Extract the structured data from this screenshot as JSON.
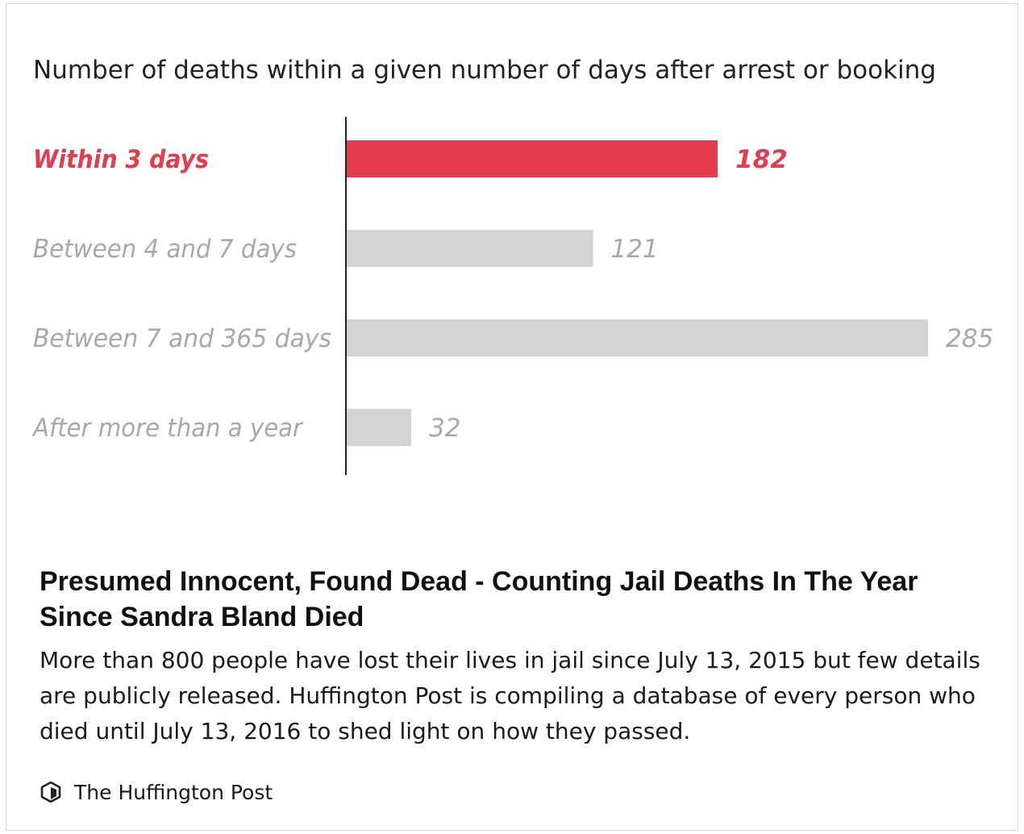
{
  "chart_data": {
    "type": "bar",
    "orientation": "horizontal",
    "title": "Number of deaths within a given number of days after arrest or booking",
    "categories": [
      "Within 3 days",
      "Between 4 and 7 days",
      "Between 7 and 365 days",
      "After more than a year"
    ],
    "values": [
      182,
      121,
      285,
      32
    ],
    "highlight_index": 0,
    "xlim": [
      0,
      285
    ],
    "grid": false,
    "colors": {
      "highlight": "#e23c4d",
      "default": "#d3d3d5",
      "label_default": "#a8a8a8",
      "axis": "#222222",
      "title": "#222222"
    }
  },
  "article": {
    "headline": "Presumed Innocent, Found Dead - Counting Jail Deaths In The Year Since Sandra Bland Died",
    "description": "More than 800 people have lost their lives in jail since July 13, 2015 but few details are publicly released. Huffington Post is compiling a database of every person who died until July 13, 2016 to shed light on how they passed.",
    "source": {
      "icon": "huffington-post-logo-icon",
      "name": "The Huffington Post"
    }
  }
}
